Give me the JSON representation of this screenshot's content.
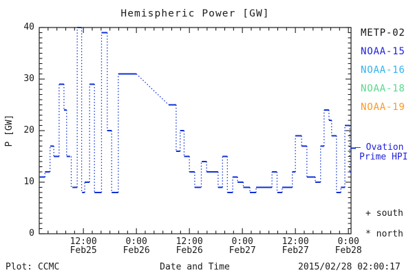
{
  "title": "Hemispheric Power [GW]",
  "y_axis": {
    "label": "P [GW]",
    "ticks": [
      0,
      10,
      20,
      30,
      40
    ]
  },
  "x_axis": {
    "label": "Date and Time",
    "ticks": [
      {
        "time": "12:00",
        "date": "Feb25",
        "h": 12
      },
      {
        "time": "0:00",
        "date": "Feb26",
        "h": 24
      },
      {
        "time": "12:00",
        "date": "Feb26",
        "h": 36
      },
      {
        "time": "0:00",
        "date": "Feb27",
        "h": 48
      },
      {
        "time": "12:00",
        "date": "Feb27",
        "h": 60
      },
      {
        "time": "0:00",
        "date": "Feb28",
        "h": 72
      }
    ]
  },
  "legend": {
    "satellites": [
      {
        "name": "METP-02",
        "color": "#111111"
      },
      {
        "name": "NOAA-15",
        "color": "#2020dd"
      },
      {
        "name": "NOAA-16",
        "color": "#30b4f0"
      },
      {
        "name": "NOAA-18",
        "color": "#58d98a"
      },
      {
        "name": "NOAA-19",
        "color": "#ff9820"
      }
    ],
    "ovation": {
      "line1": "— Ovation",
      "line2": "Prime HPI",
      "color": "#2222dd"
    },
    "markers": [
      {
        "symbol": "+",
        "label": "south"
      },
      {
        "symbol": "*",
        "label": "north"
      }
    ]
  },
  "footer": {
    "left": "Plot: CCMC",
    "right": "2015/02/28 02:00:17"
  },
  "chart_data": {
    "type": "line",
    "title": "Hemispheric Power [GW]",
    "xlabel": "Date and Time",
    "ylabel": "P [GW]",
    "ylim": [
      0,
      40
    ],
    "x_unit": "hours since 2015-02-25 00:00",
    "x_start_h": 2.0,
    "x_end_h": 72.6,
    "x_major_tick_step_h": 12,
    "x_minor_tick_step_h": 2,
    "y_minor_tick_step": 1,
    "grid": false,
    "legend_position": "right",
    "line_style": "dash markers at values, dotted connectors",
    "right_axis_marker_gw": 16.6,
    "series": [
      {
        "name": "Ovation Prime HPI",
        "color": "#0e2ed8",
        "segments_format": [
          "start_h",
          "end_h",
          "gw"
        ],
        "segments": [
          [
            2.0,
            3.3,
            11
          ],
          [
            3.3,
            4.4,
            12
          ],
          [
            4.5,
            5.3,
            17
          ],
          [
            5.3,
            6.5,
            15
          ],
          [
            6.5,
            7.6,
            29
          ],
          [
            7.6,
            8.2,
            24
          ],
          [
            8.2,
            9.0,
            15
          ],
          [
            9.5,
            10.6,
            9
          ],
          [
            10.6,
            11.5,
            40
          ],
          [
            11.7,
            12.3,
            8
          ],
          [
            12.3,
            13.4,
            10
          ],
          [
            13.4,
            14.5,
            29
          ],
          [
            14.5,
            16.1,
            8
          ],
          [
            16.1,
            17.4,
            39
          ],
          [
            17.4,
            18.4,
            20
          ],
          [
            18.4,
            19.9,
            8
          ],
          [
            19.9,
            24.0,
            31
          ],
          [
            31.3,
            33.0,
            25
          ],
          [
            33.0,
            33.9,
            16
          ],
          [
            33.9,
            34.8,
            20
          ],
          [
            34.8,
            36.0,
            15
          ],
          [
            36.0,
            37.2,
            12
          ],
          [
            37.2,
            38.6,
            9
          ],
          [
            38.8,
            39.9,
            14
          ],
          [
            39.9,
            42.5,
            12
          ],
          [
            42.5,
            43.5,
            9
          ],
          [
            43.5,
            44.6,
            15
          ],
          [
            44.6,
            45.8,
            8
          ],
          [
            45.8,
            46.9,
            11
          ],
          [
            46.9,
            48.2,
            10
          ],
          [
            48.2,
            49.7,
            9
          ],
          [
            49.7,
            51.1,
            8
          ],
          [
            51.1,
            54.7,
            9
          ],
          [
            54.7,
            55.8,
            12
          ],
          [
            55.9,
            57.0,
            8
          ],
          [
            57.0,
            59.3,
            9
          ],
          [
            59.3,
            60.0,
            12
          ],
          [
            60.0,
            61.4,
            19
          ],
          [
            61.4,
            62.6,
            17
          ],
          [
            62.6,
            64.5,
            11
          ],
          [
            64.5,
            65.7,
            10
          ],
          [
            65.7,
            66.5,
            17
          ],
          [
            66.5,
            67.6,
            24
          ],
          [
            67.6,
            68.2,
            22
          ],
          [
            68.2,
            69.3,
            19
          ],
          [
            69.3,
            70.3,
            8
          ],
          [
            70.3,
            71.2,
            9
          ],
          [
            71.2,
            72.3,
            21
          ],
          [
            72.3,
            72.6,
            12
          ]
        ]
      }
    ]
  }
}
